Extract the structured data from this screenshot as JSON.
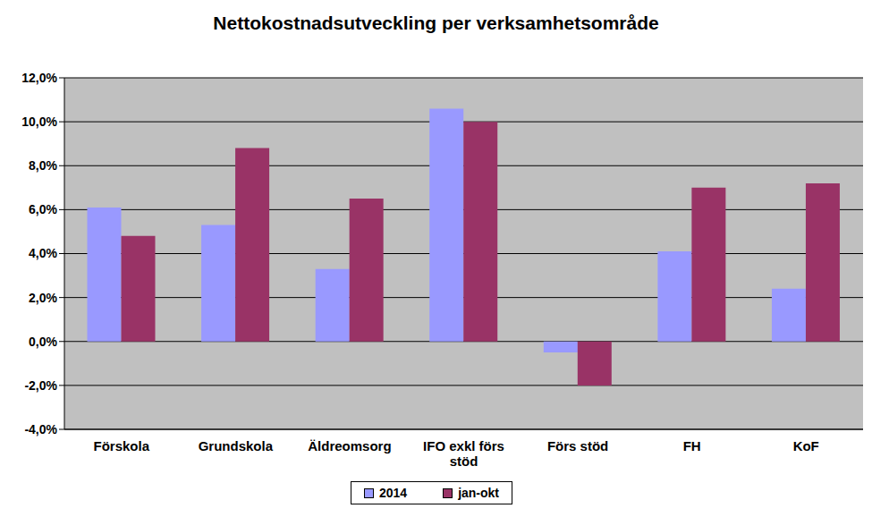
{
  "chart_data": {
    "type": "bar",
    "title": "Nettokostnadsutveckling per verksamhetsområde",
    "categories": [
      "Förskola",
      "Grundskola",
      "Äldreomsorg",
      "IFO exkl förs stöd",
      "Förs stöd",
      "FH",
      "KoF"
    ],
    "series": [
      {
        "name": "2014",
        "color": "#9999FF",
        "values": [
          6.1,
          5.3,
          3.3,
          10.6,
          -0.5,
          4.1,
          2.4
        ]
      },
      {
        "name": "jan-okt",
        "color": "#993366",
        "values": [
          4.8,
          8.8,
          6.5,
          10.0,
          -2.0,
          7.0,
          7.2
        ]
      }
    ],
    "ylim": [
      -4,
      12
    ],
    "yticks": [
      {
        "value": -4,
        "label": "-4,0%"
      },
      {
        "value": -2,
        "label": "-2,0%"
      },
      {
        "value": 0,
        "label": "0,0%"
      },
      {
        "value": 2,
        "label": "2,0%"
      },
      {
        "value": 4,
        "label": "4,0%"
      },
      {
        "value": 6,
        "label": "6,0%"
      },
      {
        "value": 8,
        "label": "8,0%"
      },
      {
        "value": 10,
        "label": "10,0%"
      },
      {
        "value": 12,
        "label": "12,0%"
      }
    ],
    "grid": true,
    "legend": "bottom"
  }
}
